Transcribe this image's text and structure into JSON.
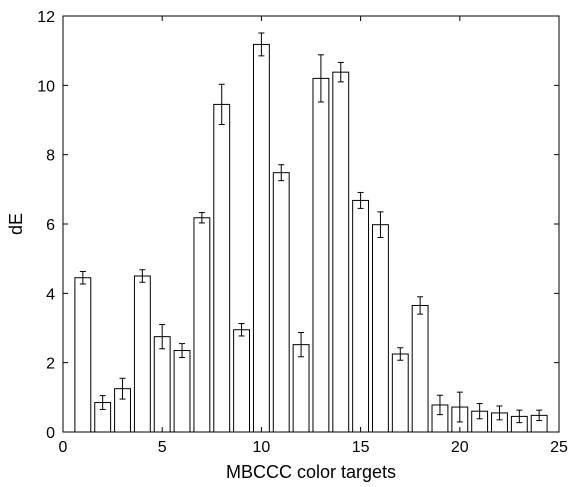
{
  "chart_data": {
    "type": "bar",
    "xlabel": "MBCCC color targets",
    "ylabel": "dE",
    "xlim": [
      0,
      25
    ],
    "ylim": [
      0,
      12
    ],
    "xticks": [
      0,
      5,
      10,
      15,
      20,
      25
    ],
    "yticks": [
      0,
      2,
      4,
      6,
      8,
      10,
      12
    ],
    "grid": false,
    "x": [
      1,
      2,
      3,
      4,
      5,
      6,
      7,
      8,
      9,
      10,
      11,
      12,
      13,
      14,
      15,
      16,
      17,
      18,
      19,
      20,
      21,
      22,
      23,
      24
    ],
    "values": [
      4.45,
      0.85,
      1.25,
      4.5,
      2.75,
      2.35,
      6.18,
      9.45,
      2.95,
      11.18,
      7.48,
      2.52,
      10.2,
      10.38,
      6.68,
      5.98,
      2.25,
      3.65,
      0.78,
      0.72,
      0.6,
      0.55,
      0.45,
      0.48
    ],
    "errors": [
      0.18,
      0.2,
      0.3,
      0.18,
      0.35,
      0.2,
      0.15,
      0.58,
      0.18,
      0.33,
      0.23,
      0.35,
      0.68,
      0.28,
      0.23,
      0.37,
      0.18,
      0.25,
      0.28,
      0.43,
      0.22,
      0.2,
      0.18,
      0.15
    ],
    "bar_fill": "#ffffff",
    "bar_stroke": "#000000"
  }
}
